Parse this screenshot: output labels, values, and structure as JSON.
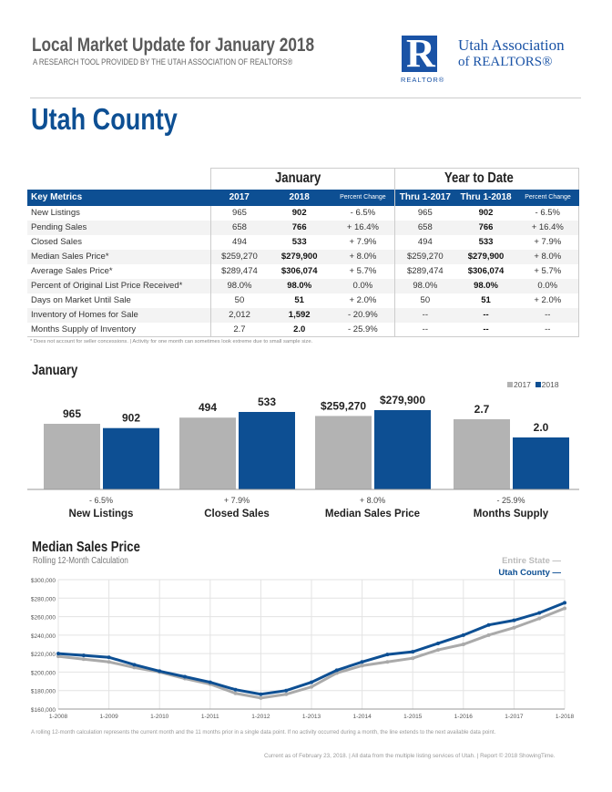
{
  "header": {
    "title": "Local Market Update for January 2018",
    "subtitle": "A RESEARCH TOOL PROVIDED BY THE UTAH ASSOCIATION OF REALTORS®",
    "logo_letter": "R",
    "logo_caption": "REALTOR®",
    "org_line1": "Utah Association",
    "org_line2": "of REALTORS®"
  },
  "area": "Utah County",
  "table": {
    "group_headers": [
      "January",
      "Year to Date"
    ],
    "columns": [
      "Key Metrics",
      "2017",
      "2018",
      "Percent Change",
      "Thru 1-2017",
      "Thru 1-2018",
      "Percent Change"
    ],
    "rows": [
      [
        "New Listings",
        "965",
        "902",
        "- 6.5%",
        "965",
        "902",
        "- 6.5%"
      ],
      [
        "Pending Sales",
        "658",
        "766",
        "+ 16.4%",
        "658",
        "766",
        "+ 16.4%"
      ],
      [
        "Closed Sales",
        "494",
        "533",
        "+ 7.9%",
        "494",
        "533",
        "+ 7.9%"
      ],
      [
        "Median Sales Price*",
        "$259,270",
        "$279,900",
        "+ 8.0%",
        "$259,270",
        "$279,900",
        "+ 8.0%"
      ],
      [
        "Average Sales Price*",
        "$289,474",
        "$306,074",
        "+ 5.7%",
        "$289,474",
        "$306,074",
        "+ 5.7%"
      ],
      [
        "Percent of Original List Price Received*",
        "98.0%",
        "98.0%",
        "0.0%",
        "98.0%",
        "98.0%",
        "0.0%"
      ],
      [
        "Days on Market Until Sale",
        "50",
        "51",
        "+ 2.0%",
        "50",
        "51",
        "+ 2.0%"
      ],
      [
        "Inventory of Homes for Sale",
        "2,012",
        "1,592",
        "- 20.9%",
        "--",
        "--",
        "--"
      ],
      [
        "Months Supply of Inventory",
        "2.7",
        "2.0",
        "- 25.9%",
        "--",
        "--",
        "--"
      ]
    ],
    "footnote": "* Does not account for seller concessions.  |  Activity for one month can sometimes look extreme due to small sample size."
  },
  "chart_data": [
    {
      "type": "bar",
      "title": "January",
      "legend": [
        "2017",
        "2018"
      ],
      "colors": [
        "#b3b3b3",
        "#0d4f93"
      ],
      "categories": [
        "New Listings",
        "Closed Sales",
        "Median Sales Price",
        "Months Supply"
      ],
      "series": [
        {
          "name": "2017",
          "values": [
            965,
            494,
            259270,
            2.7
          ],
          "labels": [
            "965",
            "494",
            "$259,270",
            "2.7"
          ]
        },
        {
          "name": "2018",
          "values": [
            902,
            533,
            279900,
            2.0
          ],
          "labels": [
            "902",
            "533",
            "$279,900",
            "2.0"
          ]
        }
      ],
      "changes": [
        "- 6.5%",
        "+ 7.9%",
        "+ 8.0%",
        "- 25.9%"
      ]
    },
    {
      "type": "line",
      "title": "Median Sales Price",
      "subtitle": "Rolling 12-Month Calculation",
      "ylim": [
        160000,
        300000
      ],
      "yticks": [
        "$160,000",
        "$180,000",
        "$200,000",
        "$220,000",
        "$240,000",
        "$260,000",
        "$280,000",
        "$300,000"
      ],
      "xticks": [
        "1-2008",
        "1-2009",
        "1-2010",
        "1-2011",
        "1-2012",
        "1-2013",
        "1-2014",
        "1-2015",
        "1-2016",
        "1-2017",
        "1-2018"
      ],
      "x": [
        "1-2008",
        "7-2008",
        "1-2009",
        "7-2009",
        "1-2010",
        "7-2010",
        "1-2011",
        "7-2011",
        "1-2012",
        "7-2012",
        "1-2013",
        "7-2013",
        "1-2014",
        "7-2014",
        "1-2015",
        "7-2015",
        "1-2016",
        "7-2016",
        "1-2017",
        "7-2017",
        "1-2018"
      ],
      "series": [
        {
          "name": "Entire State",
          "color": "#aaaaaa",
          "values": [
            217000,
            214000,
            211000,
            205000,
            200000,
            193000,
            187000,
            177000,
            172000,
            176000,
            184000,
            199000,
            207000,
            211000,
            215000,
            224000,
            230000,
            240000,
            248000,
            258000,
            269000
          ]
        },
        {
          "name": "Utah County",
          "color": "#0d4f93",
          "values": [
            220000,
            218000,
            216000,
            208000,
            201000,
            195000,
            189000,
            181000,
            176000,
            180000,
            189000,
            202000,
            211000,
            219000,
            222000,
            231000,
            240000,
            251000,
            256000,
            264000,
            275000
          ]
        }
      ],
      "grid": true,
      "legend": "top-right",
      "note": "A rolling 12-month calculation represents the current month and the 11 months prior in a single data point. If no activity occurred during a month, the line extends to the next available data point."
    }
  ],
  "footer": "Current as of February 23, 2018.  |  All data from the multiple listing services of Utah.  |  Report © 2018 ShowingTime."
}
